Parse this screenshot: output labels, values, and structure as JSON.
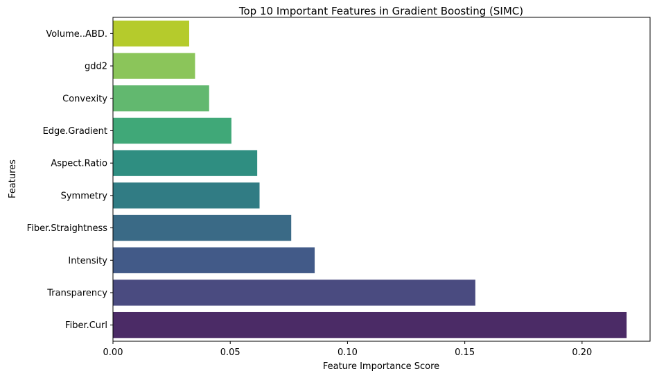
{
  "chart_data": {
    "type": "bar",
    "orientation": "horizontal",
    "title": "Top 10 Important Features in Gradient Boosting (SIMC)",
    "xlabel": "Feature Importance Score",
    "ylabel": "Features",
    "categories": [
      "Volume..ABD.",
      "gdd2",
      "Convexity",
      "Edge.Gradient",
      "Aspect.Ratio",
      "Symmetry",
      "Fiber.Straightness",
      "Intensity",
      "Transparency",
      "Fiber.Curl"
    ],
    "values": [
      0.0325,
      0.035,
      0.041,
      0.0505,
      0.0615,
      0.0625,
      0.076,
      0.086,
      0.1545,
      0.219
    ],
    "colors": [
      "#b5cb2c",
      "#8bc55a",
      "#62b86f",
      "#40a878",
      "#2f8e81",
      "#317c84",
      "#3a6a86",
      "#425a88",
      "#4a4b80",
      "#4b2b66"
    ],
    "xlim": [
      0,
      0.229
    ],
    "xticks": [
      "0.00",
      "0.05",
      "0.10",
      "0.15",
      "0.20"
    ],
    "xtick_values": [
      0,
      0.05,
      0.1,
      0.15,
      0.2
    ],
    "grid": false,
    "legend": "none"
  }
}
